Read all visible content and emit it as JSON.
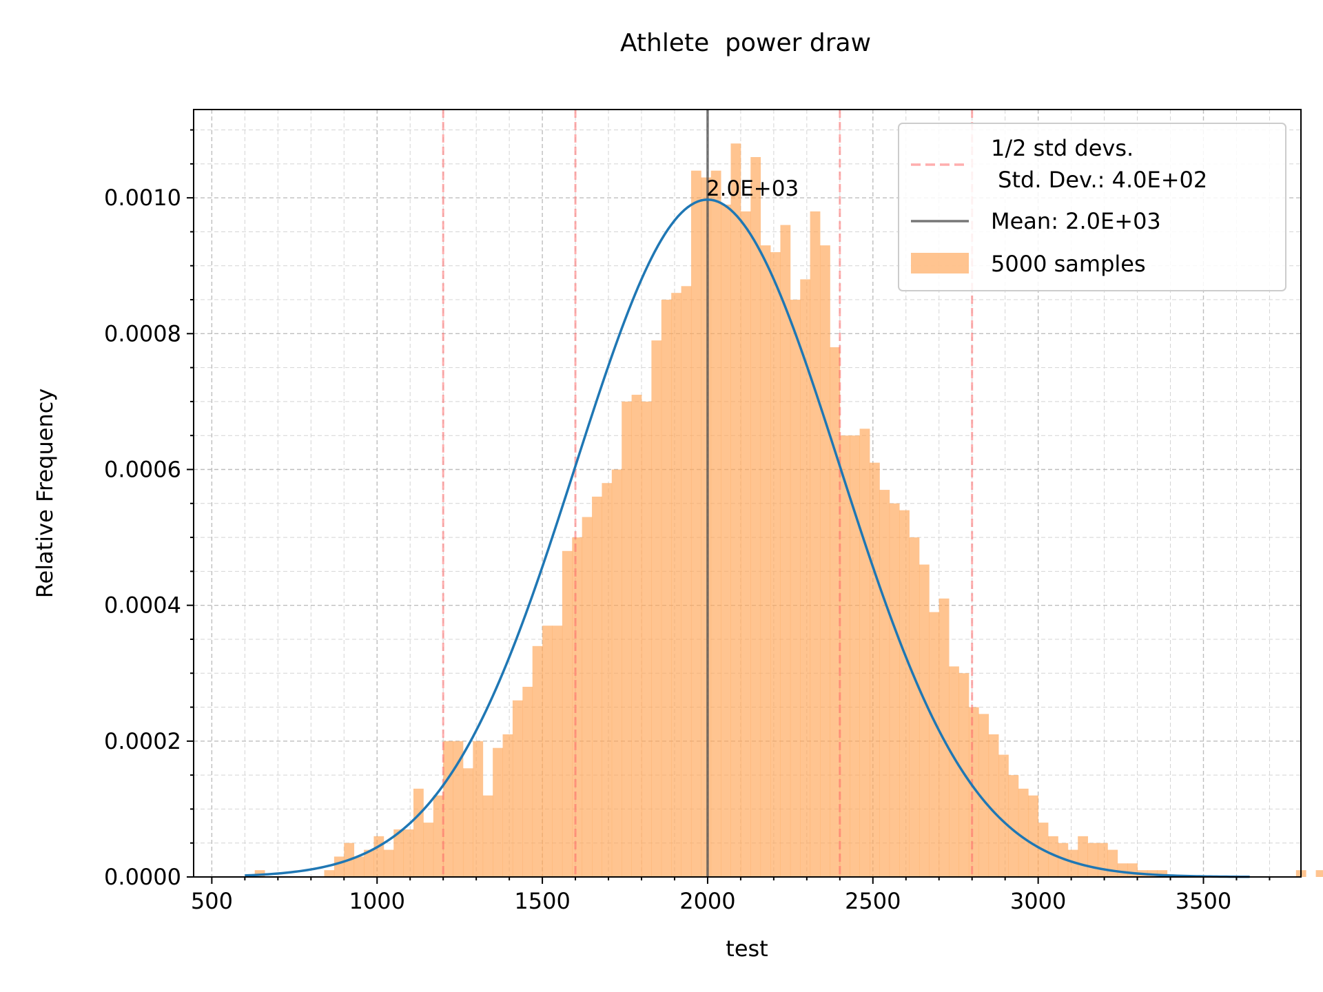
{
  "chart_data": {
    "type": "bar",
    "title": "Athlete  power draw",
    "xlabel": "test",
    "ylabel": "Relative Frequency",
    "xlim": [
      445,
      3795
    ],
    "ylim": [
      0,
      0.00113
    ],
    "xticks": [
      500,
      1000,
      1500,
      2000,
      2500,
      3000,
      3500
    ],
    "xtick_labels": [
      "500",
      "1000",
      "1500",
      "2000",
      "2500",
      "3000",
      "3500"
    ],
    "yticks": [
      0,
      0.0002,
      0.0004,
      0.0006,
      0.0008,
      0.001
    ],
    "ytick_labels": [
      "0.0000",
      "0.0002",
      "0.0004",
      "0.0006",
      "0.0008",
      "0.0010"
    ],
    "grid": true,
    "legend_position": "top-right",
    "histogram": {
      "name": "5000 samples",
      "color": "#ffa555",
      "opacity": 0.65,
      "bin_start": 630,
      "bin_width": 30,
      "values": [
        1e-05,
        0,
        0,
        0,
        0,
        0,
        0,
        1e-05,
        3e-05,
        5e-05,
        3e-05,
        4e-05,
        6e-05,
        4e-05,
        7e-05,
        7e-05,
        0.00013,
        8e-05,
        0.00012,
        0.0002,
        0.0002,
        0.00016,
        0.0002,
        0.00012,
        0.00019,
        0.00021,
        0.00026,
        0.00028,
        0.00034,
        0.00037,
        0.00037,
        0.00048,
        0.0005,
        0.00053,
        0.00056,
        0.00058,
        0.0006,
        0.0007,
        0.00071,
        0.0007,
        0.00079,
        0.00085,
        0.00086,
        0.00087,
        0.00104,
        0.00103,
        0.00104,
        0.00099,
        0.00108,
        0.00098,
        0.00106,
        0.00093,
        0.00092,
        0.00096,
        0.00085,
        0.00088,
        0.00098,
        0.00093,
        0.00078,
        0.00065,
        0.00065,
        0.00066,
        0.00061,
        0.00057,
        0.00055,
        0.00054,
        0.0005,
        0.00046,
        0.00039,
        0.00041,
        0.00031,
        0.0003,
        0.00025,
        0.00024,
        0.00021,
        0.00018,
        0.00015,
        0.00013,
        0.00012,
        8e-05,
        6e-05,
        5e-05,
        4e-05,
        6e-05,
        5e-05,
        5e-05,
        4e-05,
        2e-05,
        2e-05,
        1e-05,
        1e-05,
        1e-05,
        0,
        0,
        0,
        0,
        0,
        0,
        0,
        0,
        0,
        0,
        0,
        0,
        0,
        1e-05,
        0,
        1e-05,
        0,
        0,
        0,
        0,
        0
      ]
    },
    "fit_curve": {
      "type": "normal_pdf",
      "mean": 2000,
      "std": 400,
      "x_range": [
        600,
        3640
      ],
      "color": "#1f77b4"
    },
    "mean_line": {
      "x": 2000,
      "label": "Mean: 2.0E+03",
      "color": "#555555",
      "annotation": "2.0E+03"
    },
    "std_lines": {
      "x": [
        1200,
        1600,
        2400,
        2800
      ],
      "label": "1/2 std devs.\n Std. Dev.: 4.0E+02",
      "color": "#ff6b6b"
    }
  },
  "legend": {
    "std_line1": "1/2 std devs.",
    "std_line2": " Std. Dev.: 4.0E+02",
    "mean": "Mean: 2.0E+03",
    "samples": "5000 samples"
  }
}
